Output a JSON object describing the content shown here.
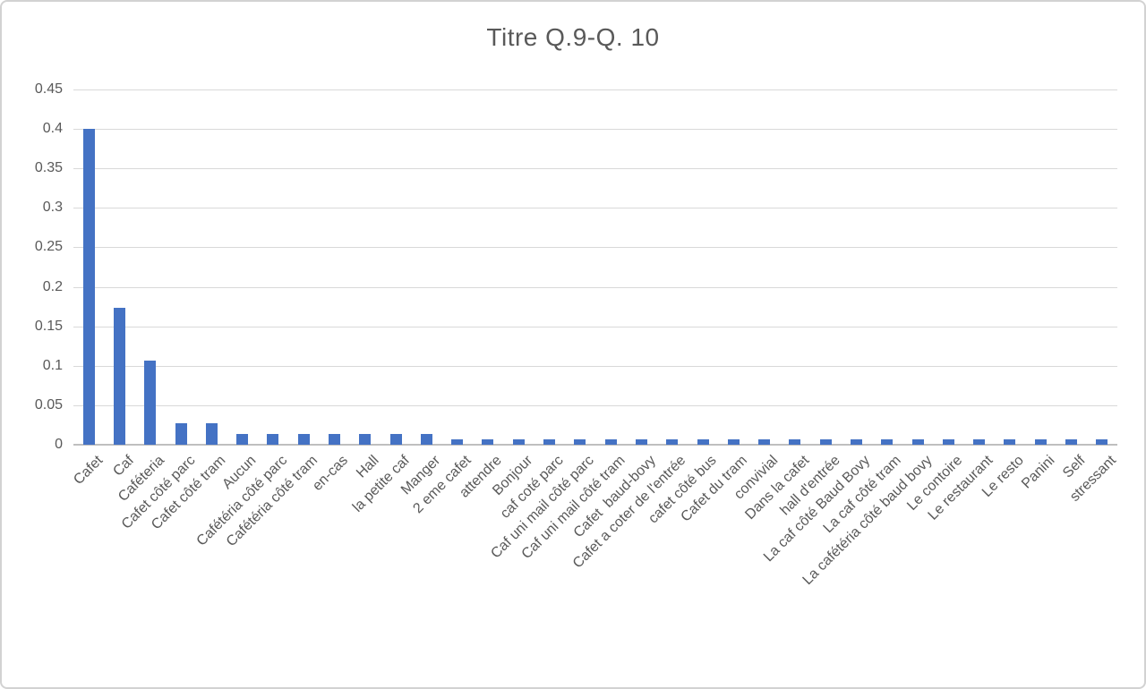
{
  "chart_data": {
    "type": "bar",
    "title": "Titre Q.9-Q. 10",
    "categories": [
      "Cafet",
      "Caf",
      "Caféteria",
      "Cafet côté parc",
      "Cafet côté tram",
      "Aucun",
      "Cafétéria côté parc",
      "Cafétéria côté tram",
      "en-cas",
      "Hall",
      "la petite caf",
      "Manger",
      "2 eme cafet",
      "attendre",
      "Bonjour",
      "caf coté parc",
      "Caf uni mail côté parc",
      "Caf uni mail côté tram",
      "Cafet  baud-bovy",
      "Cafet a coter de l'entrée",
      "cafet côté bus",
      "Cafet du tram",
      "convivial",
      "Dans la cafet",
      "hall d'entrée",
      "La caf côté Baud Bovy",
      "La caf côté tram",
      "La cafétéria côté baud bovy",
      "Le contoire",
      "Le restaurant",
      "Le resto",
      "Panini",
      "Self",
      "stressant"
    ],
    "values": [
      0.4,
      0.1733,
      0.1067,
      0.0267,
      0.0267,
      0.0133,
      0.0133,
      0.0133,
      0.0133,
      0.0133,
      0.0133,
      0.0133,
      0.0067,
      0.0067,
      0.0067,
      0.0067,
      0.0067,
      0.0067,
      0.0067,
      0.0067,
      0.0067,
      0.0067,
      0.0067,
      0.0067,
      0.0067,
      0.0067,
      0.0067,
      0.0067,
      0.0067,
      0.0067,
      0.0067,
      0.0067,
      0.0067,
      0.0067
    ],
    "xlabel": "",
    "ylabel": "",
    "ylim": [
      0,
      0.45
    ],
    "yticks": [
      0,
      0.05,
      0.1,
      0.15,
      0.2,
      0.25,
      0.3,
      0.35,
      0.4,
      0.45
    ],
    "ytick_labels": [
      "0",
      "0.05",
      "0.1",
      "0.15",
      "0.2",
      "0.25",
      "0.3",
      "0.35",
      "0.4",
      "0.45"
    ],
    "grid": "horizontal",
    "legend_position": "none",
    "colors": {
      "bar": "#4472C4",
      "gridline": "#d9d9d9",
      "axis_line": "#bfbfbf",
      "text": "#595959"
    }
  }
}
